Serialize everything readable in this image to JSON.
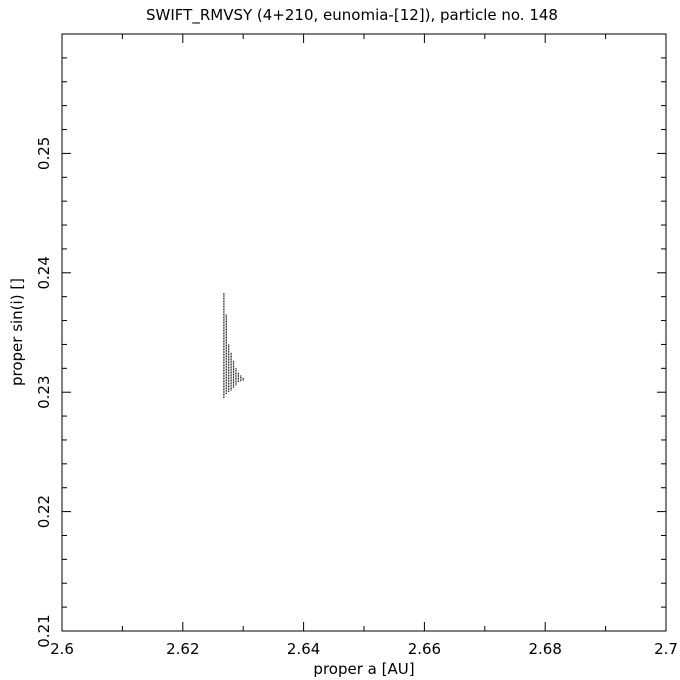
{
  "chart_data": {
    "type": "scatter",
    "title": "SWIFT_RMVSY (4+210, eunomia-[12]), particle no. 148",
    "xlabel": "proper a [AU]",
    "ylabel": "proper sin(i) []",
    "xlim": [
      2.6,
      2.7
    ],
    "ylim": [
      0.21,
      0.26
    ],
    "x_ticks": [
      2.6,
      2.62,
      2.64,
      2.66,
      2.68,
      2.7
    ],
    "x_tick_labels": [
      "2.6",
      "2.62",
      "2.64",
      "2.66",
      "2.68",
      "2.7"
    ],
    "y_ticks": [
      0.21,
      0.22,
      0.23,
      0.24,
      0.25
    ],
    "y_tick_labels": [
      "0.21",
      "0.22",
      "0.23",
      "0.24",
      "0.25"
    ],
    "grid": false,
    "marker_color": "#000000",
    "vertical_clusters": [
      {
        "x": 2.6268,
        "y_min": 0.2295,
        "y_max": 0.2383
      },
      {
        "x": 2.6272,
        "y_min": 0.2298,
        "y_max": 0.2365
      },
      {
        "x": 2.6276,
        "y_min": 0.23,
        "y_max": 0.234
      },
      {
        "x": 2.628,
        "y_min": 0.2302,
        "y_max": 0.2333
      },
      {
        "x": 2.6284,
        "y_min": 0.2304,
        "y_max": 0.2326
      },
      {
        "x": 2.6288,
        "y_min": 0.2306,
        "y_max": 0.232
      },
      {
        "x": 2.6292,
        "y_min": 0.2308,
        "y_max": 0.2316
      },
      {
        "x": 2.6296,
        "y_min": 0.2309,
        "y_max": 0.2314
      },
      {
        "x": 2.63,
        "y_min": 0.231,
        "y_max": 0.2312
      }
    ]
  }
}
